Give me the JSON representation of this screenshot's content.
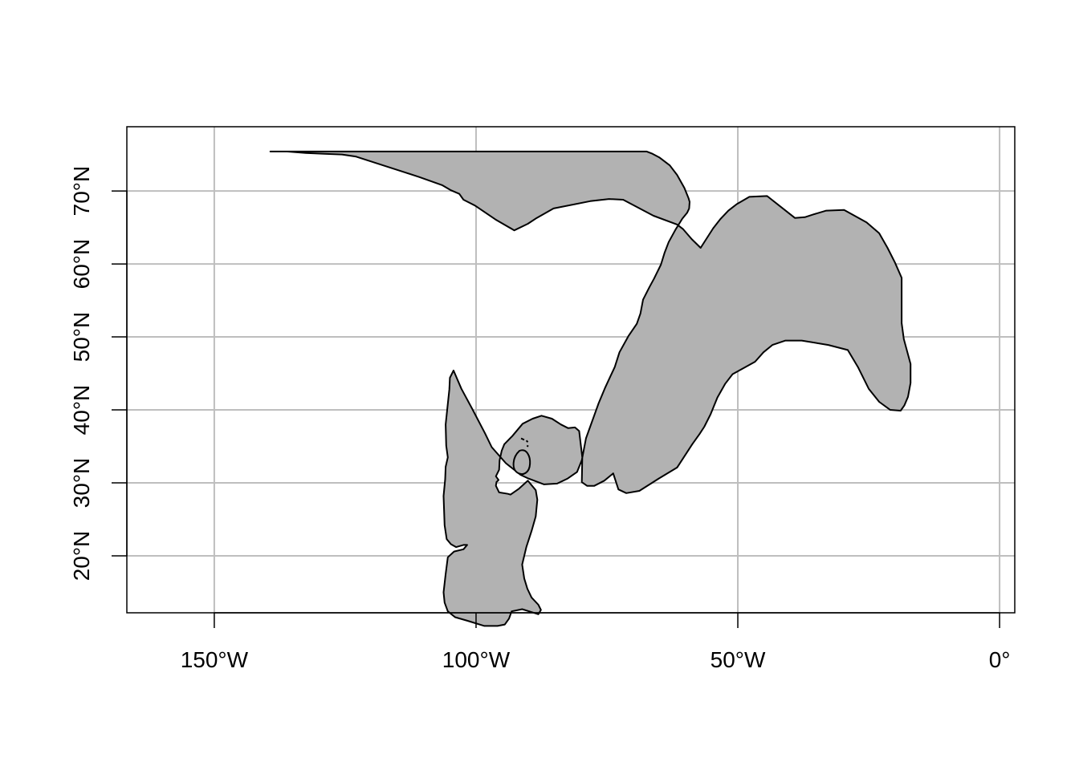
{
  "map": {
    "projection": "longlat",
    "extent": {
      "lon": [
        -166.7,
        2.9
      ],
      "lat": [
        12.2,
        78.8
      ]
    },
    "grid": true,
    "colors": {
      "land_fill": "#b2b2b2",
      "land_stroke": "#000000",
      "grid": "#bebebe"
    },
    "x_ticks": [
      {
        "lon": -150,
        "label": "150°W"
      },
      {
        "lon": -100,
        "label": "100°W"
      },
      {
        "lon": -50,
        "label": "50°W"
      },
      {
        "lon": 0,
        "label": "0°"
      }
    ],
    "y_ticks": [
      {
        "lat": 20,
        "label": "20°N"
      },
      {
        "lat": 30,
        "label": "30°N"
      },
      {
        "lat": 40,
        "label": "40°N"
      },
      {
        "lat": 50,
        "label": "50°N"
      },
      {
        "lat": 60,
        "label": "60°N"
      },
      {
        "lat": 70,
        "label": "70°N"
      }
    ],
    "region": {
      "outline": [
        [
          -139.3,
          75.4
        ],
        [
          -136.1,
          75.4
        ],
        [
          -132.5,
          75.2
        ],
        [
          -129.0,
          75.1
        ],
        [
          -125.6,
          75.0
        ],
        [
          -122.9,
          74.7
        ],
        [
          -113.4,
          72.5
        ],
        [
          -110.8,
          71.9
        ],
        [
          -106.5,
          70.8
        ],
        [
          -104.8,
          70.1
        ],
        [
          -103.2,
          69.6
        ],
        [
          -102.4,
          68.8
        ],
        [
          -100.2,
          68.0
        ],
        [
          -96.3,
          66.1
        ],
        [
          -92.7,
          64.6
        ],
        [
          -90.1,
          65.5
        ],
        [
          -88.4,
          66.3
        ],
        [
          -85.2,
          67.6
        ],
        [
          -78.2,
          68.6
        ],
        [
          -74.6,
          68.9
        ],
        [
          -71.9,
          68.8
        ],
        [
          -69.0,
          67.7
        ],
        [
          -66.1,
          66.6
        ],
        [
          -61.6,
          65.4
        ],
        [
          -60.5,
          64.8
        ],
        [
          -58.8,
          63.4
        ],
        [
          -57.1,
          62.2
        ],
        [
          -54.7,
          64.9
        ],
        [
          -53.4,
          66.1
        ],
        [
          -51.8,
          67.3
        ],
        [
          -50.2,
          68.2
        ],
        [
          -47.8,
          69.2
        ],
        [
          -44.4,
          69.3
        ],
        [
          -39.1,
          66.3
        ],
        [
          -37.2,
          66.4
        ],
        [
          -35.5,
          66.8
        ],
        [
          -33.1,
          67.3
        ],
        [
          -29.7,
          67.4
        ],
        [
          -25.4,
          65.7
        ],
        [
          -23.0,
          64.2
        ],
        [
          -21.4,
          62.2
        ],
        [
          -20.0,
          60.2
        ],
        [
          -18.7,
          58.1
        ],
        [
          -18.7,
          51.9
        ],
        [
          -18.3,
          49.7
        ],
        [
          -17.0,
          46.3
        ],
        [
          -17.0,
          43.7
        ],
        [
          -17.5,
          41.8
        ],
        [
          -18.2,
          40.6
        ],
        [
          -18.9,
          39.9
        ],
        [
          -20.9,
          40.0
        ],
        [
          -23.0,
          41.1
        ],
        [
          -25.0,
          42.9
        ],
        [
          -27.0,
          45.8
        ],
        [
          -29.0,
          48.2
        ],
        [
          -32.7,
          48.9
        ],
        [
          -37.8,
          49.5
        ],
        [
          -40.9,
          49.5
        ],
        [
          -43.4,
          48.9
        ],
        [
          -45.1,
          47.9
        ],
        [
          -46.7,
          46.6
        ],
        [
          -51.0,
          44.9
        ],
        [
          -52.4,
          43.6
        ],
        [
          -53.9,
          41.7
        ],
        [
          -55.2,
          39.4
        ],
        [
          -56.4,
          37.7
        ],
        [
          -57.3,
          36.7
        ],
        [
          -58.7,
          35.3
        ],
        [
          -61.6,
          32.1
        ],
        [
          -65.1,
          30.6
        ],
        [
          -68.8,
          28.9
        ],
        [
          -71.3,
          28.6
        ],
        [
          -72.8,
          29.1
        ],
        [
          -73.8,
          31.3
        ],
        [
          -75.5,
          30.3
        ],
        [
          -77.4,
          29.6
        ],
        [
          -78.8,
          29.6
        ],
        [
          -79.8,
          30.1
        ],
        [
          -79.7,
          33.5
        ],
        [
          -80.3,
          37.1
        ],
        [
          -81.1,
          37.6
        ],
        [
          -82.4,
          37.5
        ],
        [
          -83.8,
          38.0
        ],
        [
          -85.5,
          38.8
        ],
        [
          -87.5,
          39.2
        ],
        [
          -89.2,
          38.8
        ],
        [
          -91.1,
          38.1
        ],
        [
          -93.1,
          36.4
        ],
        [
          -94.6,
          35.3
        ],
        [
          -95.1,
          34.4
        ],
        [
          -95.5,
          33.1
        ],
        [
          -95.6,
          31.8
        ],
        [
          -96.2,
          30.9
        ],
        [
          -95.7,
          30.4
        ],
        [
          -96.1,
          30.1
        ],
        [
          -96.2,
          29.6
        ],
        [
          -95.6,
          28.7
        ],
        [
          -93.9,
          28.5
        ],
        [
          -93.4,
          28.4
        ],
        [
          -91.8,
          29.2
        ],
        [
          -90.1,
          30.3
        ],
        [
          -88.6,
          29.0
        ],
        [
          -88.3,
          27.7
        ],
        [
          -88.6,
          25.4
        ],
        [
          -89.4,
          23.4
        ],
        [
          -90.4,
          21.2
        ],
        [
          -91.2,
          18.8
        ],
        [
          -90.8,
          16.9
        ],
        [
          -90.2,
          15.5
        ],
        [
          -89.4,
          14.3
        ],
        [
          -88.1,
          13.3
        ],
        [
          -87.6,
          12.6
        ],
        [
          -88.1,
          12.0
        ],
        [
          -91.2,
          12.7
        ],
        [
          -93.2,
          12.4
        ],
        [
          -93.7,
          11.4
        ],
        [
          -94.5,
          10.6
        ],
        [
          -95.9,
          10.4
        ],
        [
          -98.4,
          10.4
        ],
        [
          -101.6,
          11.1
        ],
        [
          -104.0,
          11.6
        ],
        [
          -105.4,
          12.4
        ],
        [
          -106.0,
          13.6
        ],
        [
          -106.2,
          15.0
        ],
        [
          -105.8,
          17.5
        ],
        [
          -105.4,
          19.8
        ],
        [
          -104.2,
          20.6
        ],
        [
          -102.4,
          20.9
        ],
        [
          -101.7,
          21.5
        ],
        [
          -102.4,
          21.5
        ],
        [
          -103.8,
          21.2
        ],
        [
          -104.8,
          21.6
        ],
        [
          -105.6,
          22.3
        ],
        [
          -106.0,
          24.2
        ],
        [
          -106.2,
          28.2
        ],
        [
          -105.9,
          30.5
        ],
        [
          -105.8,
          32.2
        ],
        [
          -105.4,
          33.5
        ],
        [
          -105.7,
          35.1
        ],
        [
          -105.8,
          38.0
        ],
        [
          -105.5,
          40.1
        ],
        [
          -105.1,
          42.8
        ],
        [
          -105.0,
          44.4
        ],
        [
          -104.3,
          45.4
        ],
        [
          -102.8,
          42.9
        ],
        [
          -100.7,
          40.1
        ],
        [
          -98.3,
          36.8
        ],
        [
          -97.0,
          34.9
        ],
        [
          -94.3,
          32.7
        ],
        [
          -91.5,
          31.1
        ],
        [
          -90.0,
          30.6
        ],
        [
          -87.0,
          29.8
        ],
        [
          -84.5,
          29.9
        ],
        [
          -82.5,
          30.6
        ],
        [
          -80.7,
          31.5
        ],
        [
          -79.8,
          33.1
        ],
        [
          -79.0,
          36.1
        ],
        [
          -76.6,
          40.9
        ],
        [
          -75.3,
          43.1
        ],
        [
          -73.5,
          45.9
        ],
        [
          -72.6,
          47.9
        ],
        [
          -70.9,
          50.1
        ],
        [
          -69.3,
          51.8
        ],
        [
          -68.6,
          53.2
        ],
        [
          -68.1,
          55.1
        ],
        [
          -66.9,
          56.8
        ],
        [
          -66.0,
          58.0
        ],
        [
          -64.7,
          59.9
        ],
        [
          -64.0,
          61.5
        ],
        [
          -63.2,
          63.0
        ],
        [
          -61.9,
          64.7
        ],
        [
          -60.6,
          66.2
        ],
        [
          -59.7,
          67.0
        ],
        [
          -59.3,
          67.6
        ],
        [
          -59.2,
          68.5
        ],
        [
          -59.4,
          69.0
        ],
        [
          -60.2,
          70.4
        ],
        [
          -61.6,
          72.2
        ],
        [
          -63.0,
          73.5
        ],
        [
          -65.0,
          74.6
        ],
        [
          -66.3,
          75.1
        ],
        [
          -67.4,
          75.4
        ]
      ]
    }
  }
}
